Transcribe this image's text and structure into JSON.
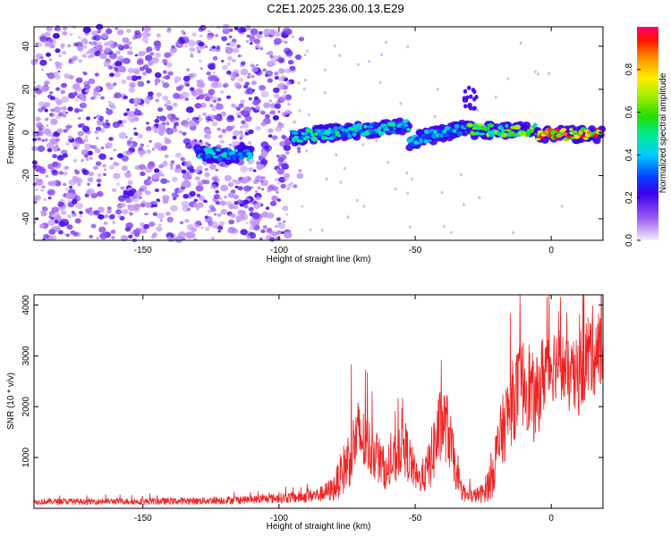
{
  "title": "C2E1.2025.236.00.13.E29",
  "chart_data": [
    {
      "type": "heatmap",
      "xlabel": "Height of straight line (km)",
      "ylabel": "Frequency (Hz)",
      "xlim": [
        -190,
        19
      ],
      "ylim": [
        -50,
        49
      ],
      "xticks": [
        -150,
        -100,
        -50,
        0
      ],
      "yticks": [
        -40,
        -20,
        0,
        20,
        40
      ],
      "xtick_labels": [
        "-150",
        "-100",
        "-50",
        "0"
      ],
      "ytick_labels": [
        "-40",
        "-20",
        "0",
        "20",
        "40"
      ],
      "colorbar": {
        "label": "Normalized spectral amplitude",
        "ticks": [
          0.0,
          0.2,
          0.4,
          0.6,
          0.8
        ],
        "tick_labels": [
          "0.0",
          "0.2",
          "0.4",
          "0.6",
          "0.8"
        ],
        "range": [
          0,
          1
        ]
      },
      "features": [
        {
          "name": "noise-field",
          "x_range": [
            -190,
            -95
          ],
          "f_range": [
            -50,
            49
          ],
          "amplitude": 0.1
        },
        {
          "name": "track-segment-1",
          "x_range": [
            -130,
            -110
          ],
          "f_center": -10,
          "amplitude": 0.45
        },
        {
          "name": "track-segment-2",
          "x_range": [
            -95,
            -52
          ],
          "f_center": -2,
          "f_slope": 0.12,
          "amplitude": 0.5
        },
        {
          "name": "track-segment-3",
          "x_range": [
            -52,
            -30
          ],
          "f_center": -4,
          "f_slope": 0.3,
          "amplitude": 0.45
        },
        {
          "name": "track-segment-4",
          "x_range": [
            -30,
            -5
          ],
          "f_center": 1,
          "amplitude": 0.7
        },
        {
          "name": "track-segment-5",
          "x_range": [
            -5,
            19
          ],
          "f_center": -1,
          "amplitude": 0.95
        },
        {
          "name": "wisp",
          "x_range": [
            -32,
            -27
          ],
          "f_range": [
            10,
            22
          ],
          "amplitude": 0.2
        }
      ]
    },
    {
      "type": "line",
      "xlabel": "Height of straight line (km)",
      "ylabel": "SNR (10 * v/v)",
      "xlim": [
        -190,
        19
      ],
      "ylim": [
        0,
        4200
      ],
      "xticks": [
        -150,
        -100,
        -50,
        0
      ],
      "yticks": [
        1000,
        2000,
        3000,
        4000
      ],
      "xtick_labels": [
        "-150",
        "-100",
        "-50",
        "0"
      ],
      "ytick_labels": [
        "1000",
        "2000",
        "3000",
        "4000"
      ],
      "series": [
        {
          "name": "SNR",
          "color": "#ee2222",
          "x": [
            -190,
            -180,
            -170,
            -160,
            -150,
            -140,
            -130,
            -120,
            -110,
            -100,
            -92,
            -85,
            -80,
            -75,
            -71,
            -68,
            -65,
            -62,
            -60,
            -57,
            -55,
            -52,
            -49,
            -46,
            -44,
            -42,
            -40,
            -38,
            -36,
            -34,
            -31,
            -28,
            -25,
            -22,
            -20,
            -18,
            -16,
            -13,
            -10,
            -8,
            -6,
            -4,
            -2,
            0,
            3,
            6,
            9,
            12,
            15,
            19
          ],
          "mean": [
            130,
            135,
            130,
            140,
            135,
            140,
            145,
            160,
            170,
            200,
            220,
            270,
            380,
            900,
            1450,
            1250,
            1100,
            850,
            650,
            1000,
            1350,
            950,
            550,
            700,
            1000,
            1400,
            1700,
            1550,
            1000,
            400,
            230,
            250,
            300,
            600,
            1100,
            1500,
            1850,
            2250,
            2500,
            2400,
            2000,
            2450,
            2800,
            2850,
            2900,
            2600,
            2500,
            2900,
            3100,
            3050
          ],
          "amp": [
            60,
            60,
            60,
            60,
            65,
            70,
            70,
            80,
            80,
            100,
            120,
            150,
            250,
            600,
            700,
            600,
            550,
            450,
            300,
            550,
            650,
            500,
            250,
            400,
            600,
            800,
            750,
            700,
            500,
            200,
            150,
            150,
            200,
            450,
            600,
            700,
            800,
            850,
            900,
            950,
            800,
            850,
            850,
            800,
            700,
            700,
            800,
            900,
            900,
            850
          ]
        }
      ]
    }
  ]
}
